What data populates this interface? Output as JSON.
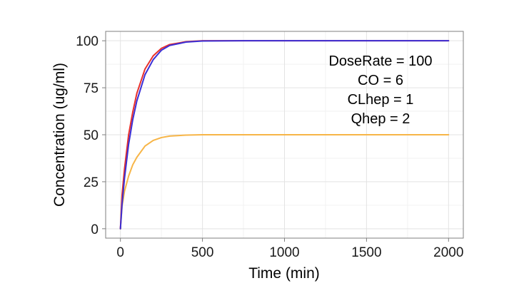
{
  "chart_data": {
    "type": "line",
    "title": "",
    "xlabel": "Time (min)",
    "ylabel": "Concentration (ug/ml)",
    "xlim": [
      -90,
      2090
    ],
    "ylim": [
      -5,
      105
    ],
    "xticks": [
      0,
      500,
      1000,
      1500,
      2000
    ],
    "yticks": [
      0,
      25,
      50,
      75,
      100
    ],
    "grid": true,
    "legend": "none",
    "annotations": [
      "DoseRate = 100",
      "CO = 6",
      "CLhep = 1",
      "Qhep = 2"
    ],
    "series": [
      {
        "color": "#e8302c",
        "x": [
          0,
          10,
          25,
          50,
          75,
          100,
          150,
          200,
          250,
          300,
          400,
          500,
          750,
          1000,
          1500,
          2000
        ],
        "y": [
          0,
          18,
          32,
          50,
          62,
          72,
          85,
          92,
          96,
          98,
          99.5,
          100,
          100,
          100,
          100,
          100
        ]
      },
      {
        "color": "#3a2fd6",
        "x": [
          0,
          10,
          25,
          50,
          75,
          100,
          150,
          200,
          250,
          300,
          400,
          500,
          750,
          1000,
          1500,
          2000
        ],
        "y": [
          0,
          13,
          27,
          45,
          58,
          68,
          82,
          90,
          95,
          97.5,
          99.3,
          99.9,
          100,
          100,
          100,
          100
        ]
      },
      {
        "color": "#f7b547",
        "x": [
          0,
          10,
          25,
          50,
          75,
          100,
          150,
          200,
          250,
          300,
          400,
          500,
          750,
          1000,
          1500,
          2000
        ],
        "y": [
          0,
          12,
          20,
          28,
          34,
          38,
          44,
          47,
          48.5,
          49.3,
          49.8,
          50,
          50,
          50,
          50,
          50
        ]
      }
    ]
  }
}
